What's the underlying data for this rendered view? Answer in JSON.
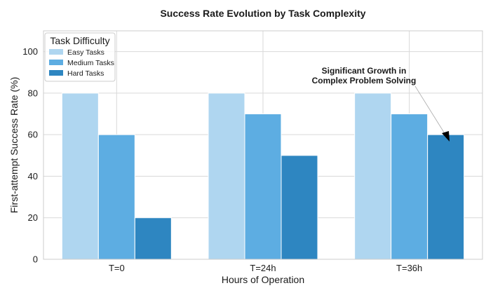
{
  "chart_data": {
    "type": "bar",
    "title": "Success Rate Evolution by Task Complexity",
    "xlabel": "Hours of Operation",
    "ylabel": "First-attempt Success Rate (%)",
    "categories": [
      "T=0",
      "T=24h",
      "T=36h"
    ],
    "ylim": [
      0,
      110
    ],
    "yticks": [
      0,
      20,
      40,
      60,
      80,
      100
    ],
    "grid": true,
    "legend": {
      "title": "Task Difficulty",
      "position": "top-left"
    },
    "series": [
      {
        "name": "Easy Tasks",
        "values": [
          80,
          80,
          80
        ],
        "color": "#afd6f0"
      },
      {
        "name": "Medium Tasks",
        "values": [
          60,
          70,
          70
        ],
        "color": "#5dade2"
      },
      {
        "name": "Hard Tasks",
        "values": [
          20,
          50,
          60
        ],
        "color": "#2e86c1"
      }
    ],
    "annotation": {
      "lines": [
        "Significant Growth in",
        "Complex Problem Solving"
      ],
      "target_series": 2,
      "target_category": 2
    }
  }
}
